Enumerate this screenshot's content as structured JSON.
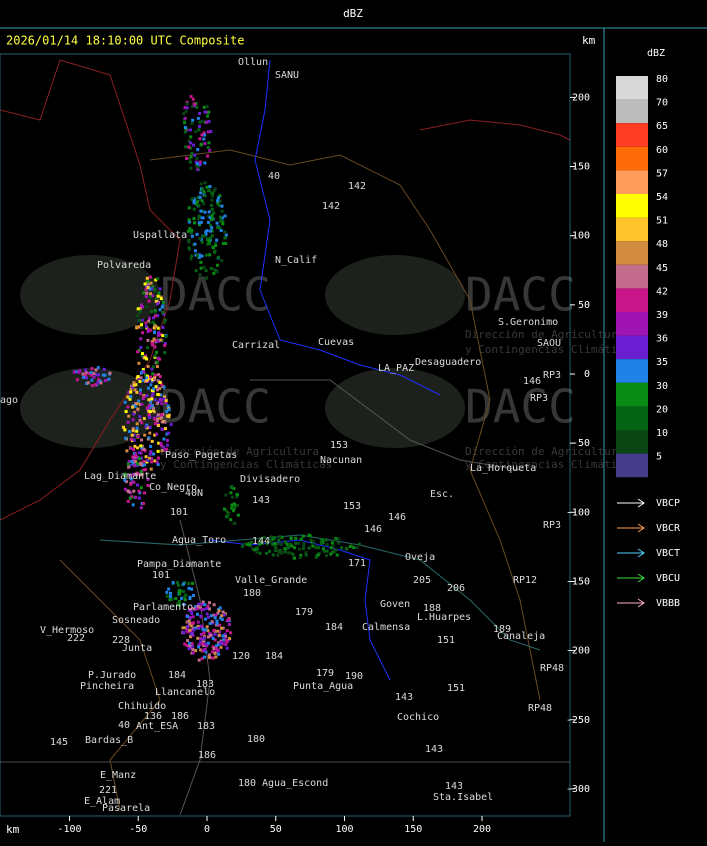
{
  "header": {
    "title": "dBZ"
  },
  "map": {
    "title": "2026/01/14 18:10:00 UTC Composite",
    "unit_top": "km",
    "unit_bottom": "km",
    "xticks": [
      -100,
      -50,
      0,
      50,
      100,
      150,
      200
    ],
    "yticks": [
      200,
      150,
      100,
      50,
      0,
      -50,
      -100,
      -150,
      -200,
      -250,
      -300
    ],
    "places": [
      "Ollun",
      "SANU",
      "40",
      "142",
      "142",
      "Uspallata",
      "Polvareda",
      "N_Calif",
      "Carrizal",
      "Cuevas",
      "S.Geronimo",
      "SAOU",
      "Desaguadero",
      "LA_PAZ",
      "RP3",
      "146",
      "RP3",
      "ago",
      "153",
      "Nacunan",
      "Paso_Pagetas",
      "La_Horqueta",
      "Lag_Diamante",
      "Co_Negro",
      "Divisadero",
      "40N",
      "Esc.",
      "143",
      "101",
      "153",
      "146",
      "RP3",
      "Agua_Toro",
      "144",
      "146",
      "171",
      "Pampa_Diamante",
      "101",
      "Oveja",
      "205",
      "206",
      "RP12",
      "Valle_Grande",
      "180",
      "Parlamento",
      "Sosneado",
      "179",
      "Goven",
      "188",
      "L.Huarpes",
      "184",
      "Calmensa",
      "189",
      "Canaleja",
      "V_Hermoso",
      "222",
      "228",
      "Junta",
      "151",
      "120",
      "184",
      "RP48",
      "179",
      "190",
      "P.Jurado",
      "Pincheira",
      "184",
      "183",
      "Punta_Agua",
      "151",
      "Llancanelo",
      "143",
      "Chihuido",
      "136",
      "186",
      "RP48",
      "40",
      "Ant_ESA",
      "183",
      "Cochico",
      "145",
      "Bardas_B",
      "180",
      "186",
      "143",
      "E_Manz",
      "180",
      "Agua_Escond",
      "143",
      "221",
      "E_Alam",
      "Sta.Isabel",
      "Pasarela"
    ],
    "watermark": {
      "logo": "DACC",
      "line1": "Dirección de Agricultura",
      "line2": "y Contingencias Climáticas"
    }
  },
  "legend": {
    "title": "dBZ",
    "levels": [
      {
        "label": 80,
        "color": "#d8d8d8"
      },
      {
        "label": 70,
        "color": "#bcbcbc"
      },
      {
        "label": 65,
        "color": "#ff3c24"
      },
      {
        "label": 60,
        "color": "#ff6a08"
      },
      {
        "label": 57,
        "color": "#ff9c5c"
      },
      {
        "label": 54,
        "color": "#ffff00"
      },
      {
        "label": 51,
        "color": "#ffc42c"
      },
      {
        "label": 48,
        "color": "#d28c40"
      },
      {
        "label": 45,
        "color": "#c46c8c"
      },
      {
        "label": 42,
        "color": "#c8168a"
      },
      {
        "label": 39,
        "color": "#a014b4"
      },
      {
        "label": 36,
        "color": "#6a1ed2"
      },
      {
        "label": 35,
        "color": "#1e82e6"
      },
      {
        "label": 30,
        "color": "#0a8c14"
      },
      {
        "label": 20,
        "color": "#056414"
      },
      {
        "label": 10,
        "color": "#0a4614"
      },
      {
        "label": 5,
        "color": "#463c8c"
      }
    ],
    "radars": [
      {
        "name": "VBCP",
        "color": "#ffffff"
      },
      {
        "name": "VBCR",
        "color": "#ffa050"
      },
      {
        "name": "VBCT",
        "color": "#50d0ff"
      },
      {
        "name": "VBCU",
        "color": "#40e040"
      },
      {
        "name": "VBBB",
        "color": "#ffb0c0"
      }
    ]
  }
}
